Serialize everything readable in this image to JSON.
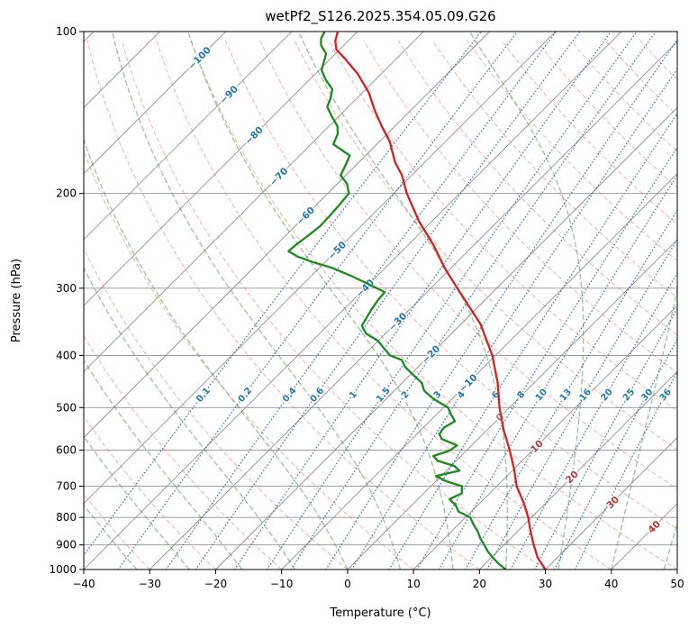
{
  "title": "wetPf2_S126.2025.354.05.09.G26",
  "chart_data": {
    "type": "line",
    "variant": "skew-t-log-p-sounding",
    "title": "wetPf2_S126.2025.354.05.09.G26",
    "xlabel": "Temperature (°C)",
    "ylabel": "Pressure (hPa)",
    "xlim": [
      -40,
      50
    ],
    "pressure_range": [
      1000,
      100
    ],
    "x_ticks": [
      -40,
      -30,
      -20,
      -10,
      0,
      10,
      20,
      30,
      40,
      50
    ],
    "pressure_ticks": [
      100,
      200,
      300,
      400,
      500,
      600,
      700,
      800,
      900,
      1000
    ],
    "skew_degrees": 45,
    "grid": {
      "isobar_color": "#909090",
      "isotherm_color": "#909090",
      "isotherm_start": -120,
      "isotherm_end": 50,
      "isotherm_step": 10
    },
    "dry_adiabats": {
      "theta_start": -40,
      "theta_end": 220,
      "step": 10,
      "color": "rgba(235,105,95,0.5)"
    },
    "moist_adiabats": {
      "t0_start": -40,
      "t0_end": 48,
      "step": 8,
      "color": "rgba(60,145,60,0.5)"
    },
    "mixing_ratio_lines": {
      "values": [
        0.1,
        0.2,
        0.4,
        0.6,
        1,
        1.5,
        2,
        3,
        4,
        6,
        8,
        10,
        13,
        16,
        20,
        25,
        30,
        36
      ],
      "label_pressure": 473,
      "color": "rgba(30,110,175,0.9)",
      "label_color": "#1f77b4"
    },
    "isotherm_labels": {
      "negative_color": "#1f77b4",
      "zero_color": "#808080",
      "positive_color": "#bb3333",
      "items": [
        {
          "t": -100,
          "p": 112
        },
        {
          "t": -90,
          "p": 131
        },
        {
          "t": -80,
          "p": 156
        },
        {
          "t": -70,
          "p": 186
        },
        {
          "t": -60,
          "p": 220
        },
        {
          "t": -50,
          "p": 255
        },
        {
          "t": -40,
          "p": 300
        },
        {
          "t": -30,
          "p": 346
        },
        {
          "t": -20,
          "p": 398
        },
        {
          "t": -10,
          "p": 450
        },
        {
          "t": 0,
          "p": 521
        },
        {
          "t": 10,
          "p": 590
        },
        {
          "t": 20,
          "p": 673
        },
        {
          "t": 30,
          "p": 750
        },
        {
          "t": 40,
          "p": 833
        }
      ]
    },
    "series": [
      {
        "name": "temperature",
        "color": "#d62020",
        "points": [
          [
            1000,
            30
          ],
          [
            950,
            27
          ],
          [
            900,
            24.5
          ],
          [
            850,
            22
          ],
          [
            800,
            19.5
          ],
          [
            750,
            16.5
          ],
          [
            700,
            13
          ],
          [
            650,
            10
          ],
          [
            600,
            6.5
          ],
          [
            550,
            2.5
          ],
          [
            500,
            -1.5
          ],
          [
            450,
            -5.5
          ],
          [
            400,
            -10.5
          ],
          [
            350,
            -17
          ],
          [
            300,
            -26
          ],
          [
            275,
            -31
          ],
          [
            250,
            -36
          ],
          [
            225,
            -42
          ],
          [
            200,
            -48
          ],
          [
            185,
            -51.5
          ],
          [
            175,
            -54.5
          ],
          [
            160,
            -58.5
          ],
          [
            150,
            -62
          ],
          [
            140,
            -65.5
          ],
          [
            130,
            -69
          ],
          [
            120,
            -73.5
          ],
          [
            112,
            -78
          ],
          [
            108,
            -80.5
          ],
          [
            104,
            -82
          ],
          [
            100,
            -83
          ]
        ]
      },
      {
        "name": "dewpoint",
        "color": "#1a8a1a",
        "points": [
          [
            1000,
            24
          ],
          [
            975,
            22
          ],
          [
            950,
            20.2
          ],
          [
            925,
            18.5
          ],
          [
            900,
            17
          ],
          [
            875,
            15.4
          ],
          [
            850,
            14
          ],
          [
            825,
            12.3
          ],
          [
            800,
            10.7
          ],
          [
            780,
            8
          ],
          [
            760,
            6.7
          ],
          [
            740,
            4.8
          ],
          [
            722,
            5.8
          ],
          [
            700,
            4.7
          ],
          [
            685,
            1.5
          ],
          [
            670,
            -0.8
          ],
          [
            655,
            2
          ],
          [
            642,
            0.5
          ],
          [
            628,
            -2.8
          ],
          [
            615,
            -4.2
          ],
          [
            602,
            -2.6
          ],
          [
            588,
            -2.2
          ],
          [
            572,
            -5.5
          ],
          [
            560,
            -6.6
          ],
          [
            545,
            -6.9
          ],
          [
            530,
            -6.2
          ],
          [
            515,
            -7.8
          ],
          [
            500,
            -9.3
          ],
          [
            482,
            -12.8
          ],
          [
            465,
            -15.5
          ],
          [
            450,
            -17
          ],
          [
            435,
            -19.5
          ],
          [
            420,
            -22
          ],
          [
            408,
            -23.5
          ],
          [
            400,
            -26
          ],
          [
            388,
            -28
          ],
          [
            376,
            -30
          ],
          [
            364,
            -33
          ],
          [
            352,
            -34.8
          ],
          [
            340,
            -35.3
          ],
          [
            328,
            -35.8
          ],
          [
            316,
            -36.2
          ],
          [
            305,
            -36.4
          ],
          [
            295,
            -40
          ],
          [
            285,
            -43.8
          ],
          [
            275,
            -48
          ],
          [
            268,
            -52
          ],
          [
            262,
            -55
          ],
          [
            256,
            -57.2
          ],
          [
            248,
            -57
          ],
          [
            240,
            -56.6
          ],
          [
            230,
            -56.2
          ],
          [
            220,
            -56.3
          ],
          [
            210,
            -56.5
          ],
          [
            200,
            -56.8
          ],
          [
            192,
            -58.5
          ],
          [
            185,
            -60.8
          ],
          [
            178,
            -61.5
          ],
          [
            170,
            -62.4
          ],
          [
            162,
            -66.6
          ],
          [
            155,
            -67.5
          ],
          [
            150,
            -68.7
          ],
          [
            144,
            -71
          ],
          [
            138,
            -73.2
          ],
          [
            133,
            -74
          ],
          [
            128,
            -75.1
          ],
          [
            123,
            -77.5
          ],
          [
            118,
            -79.6
          ],
          [
            114,
            -80.5
          ],
          [
            110,
            -81.4
          ],
          [
            106,
            -83.5
          ],
          [
            103,
            -84.5
          ],
          [
            100,
            -85
          ]
        ]
      }
    ]
  }
}
